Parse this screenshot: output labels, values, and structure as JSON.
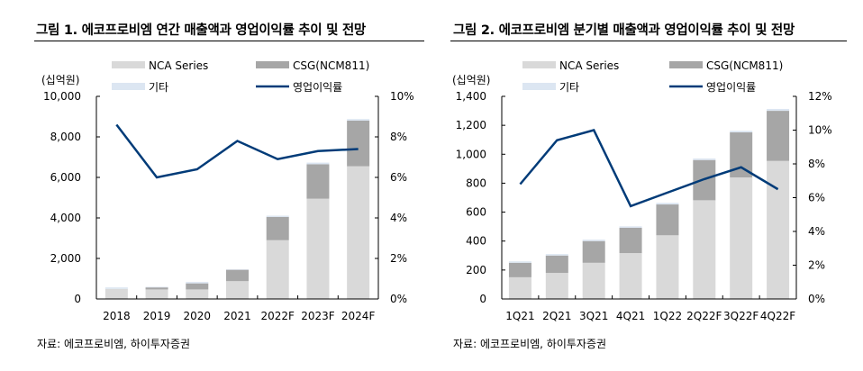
{
  "colors": {
    "nca": "#d9d9d9",
    "csg": "#a6a6a6",
    "other": "#dce6f2",
    "margin": "#003b78"
  },
  "chart_data": [
    {
      "type": "bar",
      "stacked": true,
      "title": "그림 1. 에코프로비엠 연간 매출액과 영업이익률 추이 및 전망",
      "unit_label": "(십억원)",
      "source": "자료: 에코프로비엠, 하이투자증권",
      "categories": [
        "2018",
        "2019",
        "2020",
        "2021",
        "2022F",
        "2023F",
        "2024F"
      ],
      "ylim": [
        0,
        10000
      ],
      "yticks": [
        "0",
        "2,000",
        "4,000",
        "6,000",
        "8,000",
        "10,000"
      ],
      "y2lim": [
        0,
        10
      ],
      "y2ticks": [
        "0%",
        "2%",
        "4%",
        "6%",
        "8%",
        "10%"
      ],
      "legend": [
        "NCA Series",
        "CSG(NCM811)",
        "기타",
        "영업이익률"
      ],
      "series": [
        {
          "name": "NCA Series",
          "values": [
            500,
            470,
            470,
            880,
            2900,
            4950,
            6550
          ]
        },
        {
          "name": "CSG(NCM811)",
          "values": [
            0,
            100,
            300,
            560,
            1150,
            1700,
            2250
          ]
        },
        {
          "name": "기타",
          "values": [
            70,
            30,
            70,
            20,
            60,
            80,
            80
          ]
        },
        {
          "name": "영업이익률",
          "type": "line",
          "axis": "right",
          "values": [
            8.6,
            6.0,
            6.4,
            7.8,
            6.9,
            7.3,
            7.4
          ]
        }
      ]
    },
    {
      "type": "bar",
      "stacked": true,
      "title": "그림 2. 에코프로비엠 분기별 매출액과 영업이익률 추이 및 전망",
      "unit_label": "(십억원)",
      "source": "자료: 에코프로비엠, 하이투자증권",
      "categories": [
        "1Q21",
        "2Q21",
        "3Q21",
        "4Q21",
        "1Q22",
        "2Q22F",
        "3Q22F",
        "4Q22F"
      ],
      "ylim": [
        0,
        1400
      ],
      "yticks": [
        "0",
        "200",
        "400",
        "600",
        "800",
        "1,000",
        "1,200",
        "1,400"
      ],
      "y2lim": [
        0,
        12
      ],
      "y2ticks": [
        "0%",
        "2%",
        "4%",
        "6%",
        "8%",
        "10%",
        "12%"
      ],
      "legend": [
        "NCA Series",
        "CSG(NCM811)",
        "기타",
        "영업이익률"
      ],
      "series": [
        {
          "name": "NCA Series",
          "values": [
            150,
            180,
            250,
            317,
            440,
            682,
            840,
            954
          ]
        },
        {
          "name": "CSG(NCM811)",
          "values": [
            100,
            120,
            150,
            175,
            213,
            278,
            311,
            346
          ]
        },
        {
          "name": "기타",
          "values": [
            10,
            10,
            10,
            10,
            11,
            11,
            11,
            13
          ]
        },
        {
          "name": "영업이익률",
          "type": "line",
          "axis": "right",
          "values": [
            6.8,
            9.4,
            10.0,
            5.5,
            6.3,
            7.1,
            7.8,
            6.5
          ]
        }
      ]
    }
  ]
}
